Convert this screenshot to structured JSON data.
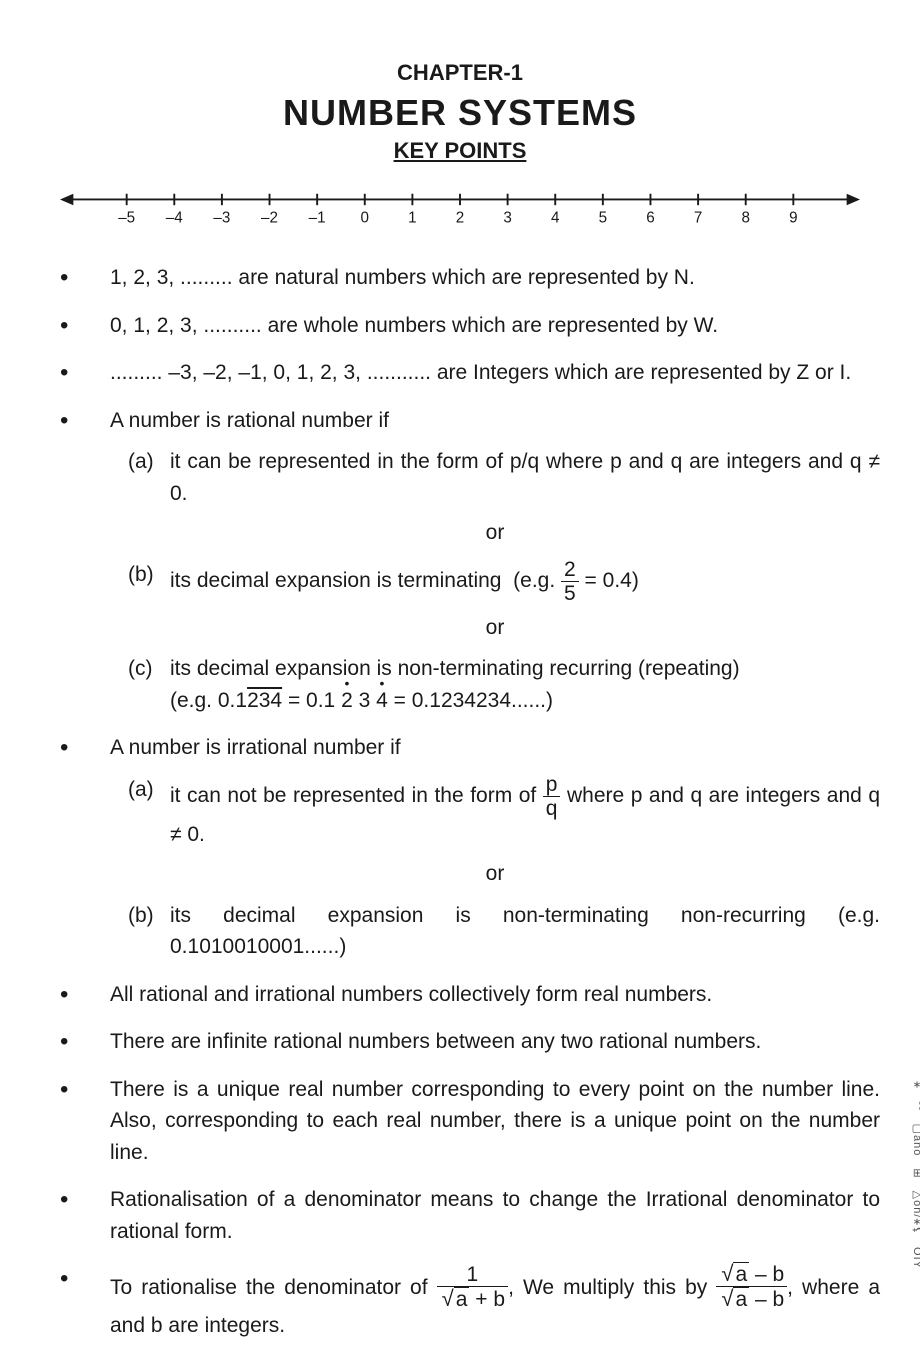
{
  "header": {
    "chapter": "CHAPTER-1",
    "title": "NUMBER SYSTEMS",
    "subtitle": "KEY POINTS"
  },
  "numberline": {
    "ticks": [
      "–5",
      "–4",
      "–3",
      "–2",
      "–1",
      "0",
      "1",
      "2",
      "3",
      "4",
      "5",
      "6",
      "7",
      "8",
      "9"
    ],
    "line_color": "#1a1a1a",
    "font_size": 16
  },
  "points": {
    "p1": "1, 2, 3, ......... are natural numbers which are represented by N.",
    "p2": "0, 1, 2, 3, .......... are whole numbers which are represented by W.",
    "p3": "......... –3, –2, –1, 0, 1, 2, 3, ........... are Integers which are represented by Z or I.",
    "p4_intro": "A number is rational number if",
    "p4a": "it can be represented in the form of p/q where p and q are integers and q ≠ 0.",
    "p4b_pre": "its decimal expansion is terminating",
    "p4b_eg_pre": "(e.g. ",
    "p4b_eg_num": "2",
    "p4b_eg_den": "5",
    "p4b_eg_post": " = 0.4)",
    "p4c_pre": "its decimal expansion is non-terminating recurring (repeating)",
    "p4c_eg": "(e.g.  0.1",
    "p4c_over": "234",
    "p4c_mid": "  =  0.1 ",
    "p4c_d1": "2",
    "p4c_d2": " 3 ",
    "p4c_d3": "4",
    "p4c_end": "  =  0.1234234......)",
    "p5_intro": "A number is irrational number if",
    "p5a_pre": "it can not be represented in the form of  ",
    "p5a_num": "p",
    "p5a_den": "q",
    "p5a_post": "  where p and q are integers and q ≠ 0.",
    "p5b": "its decimal expansion is non-terminating non-recurring (e.g. 0.1010010001......)",
    "p6": "All rational and irrational numbers collectively form real numbers.",
    "p7": "There are infinite rational numbers between any two rational numbers.",
    "p8": "There is a unique real number corresponding to every point on the number line. Also, corresponding to each real number, there is a unique point on the number line.",
    "p9": "Rationalisation of a denominator means to change the Irrational denominator to rational form.",
    "p10_pre": "To rationalise the denominator of  ",
    "p10_f1_num": "1",
    "p10_f1_den_a": "a",
    "p10_f1_den_b": " + b",
    "p10_mid": ",  We multiply this by ",
    "p10_f2_num_a": "a",
    "p10_f2_num_b": " – b",
    "p10_f2_den_a": "a",
    "p10_f2_den_b": " – b",
    "p10_post": ",    where a and b are integers."
  },
  "or_label": "or",
  "sub_labels": {
    "a": "(a)",
    "b": "(b)",
    "c": "(c)"
  },
  "side_marks": [
    "⚹",
    "°°",
    "▢ano",
    "⊞",
    "△on/⚹⚸",
    "OIY"
  ]
}
